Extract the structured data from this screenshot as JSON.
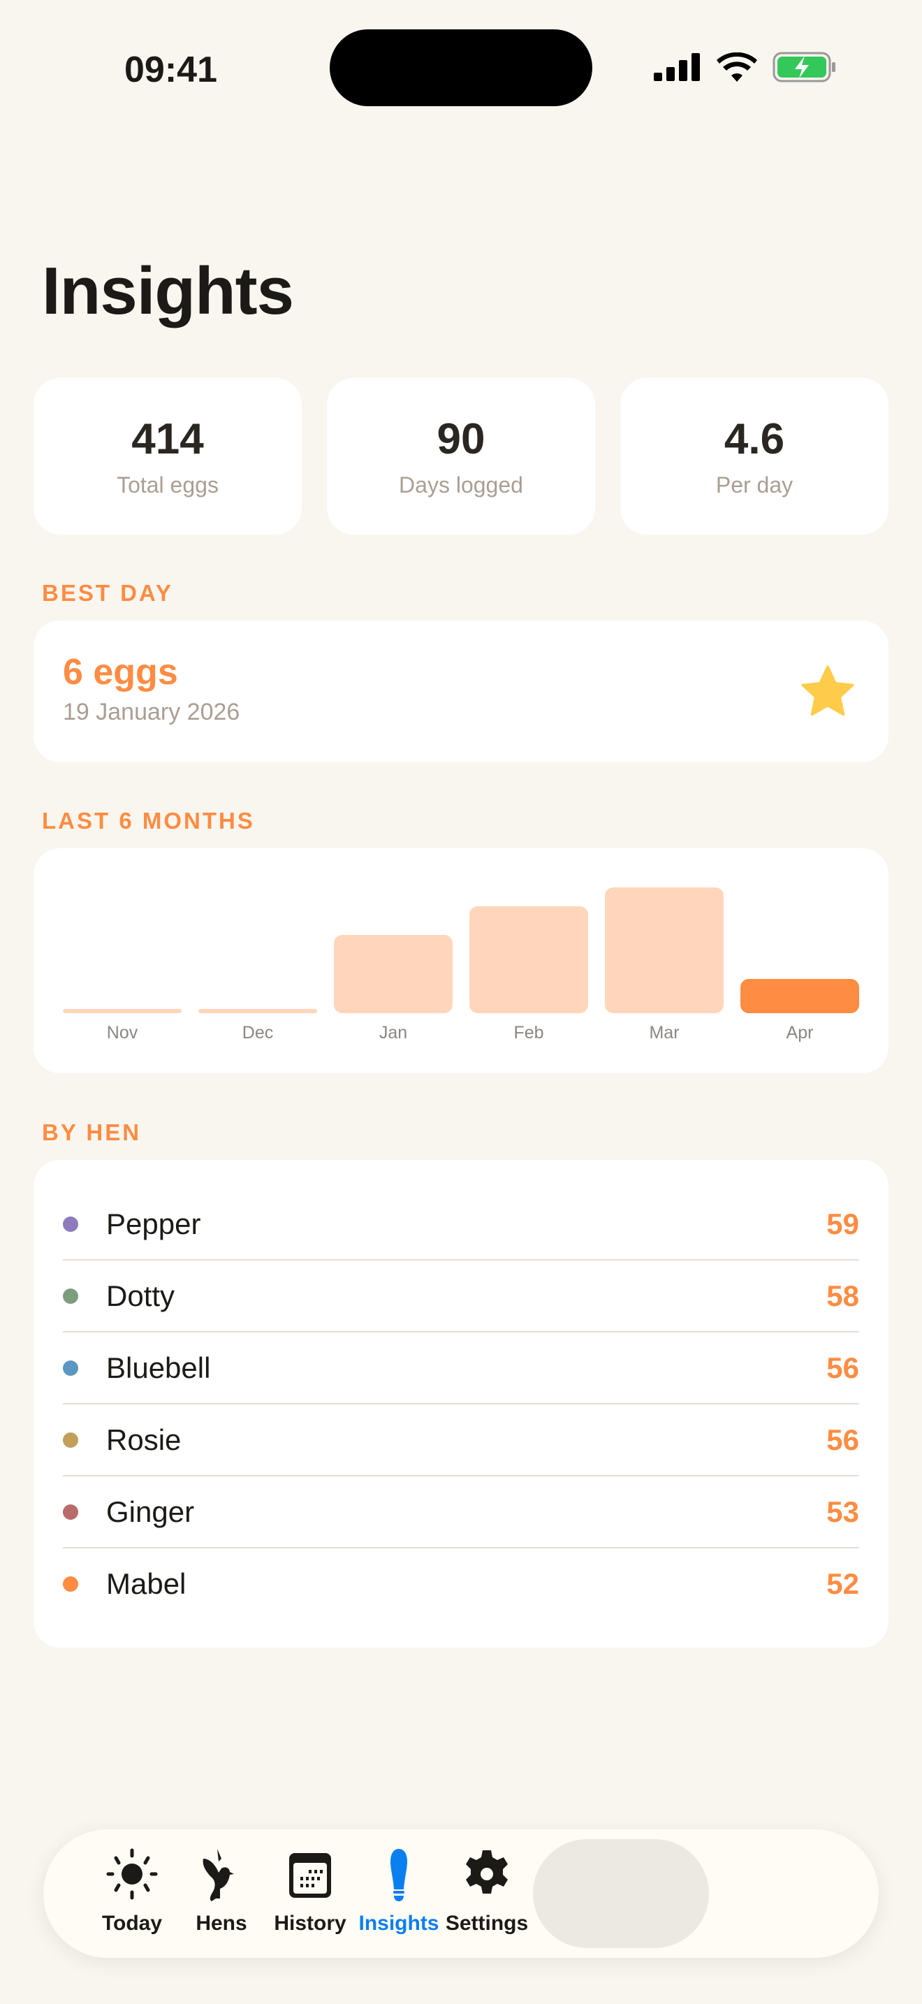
{
  "status": {
    "time": "09:41"
  },
  "title": "Insights",
  "stats": [
    {
      "value": "414",
      "label": "Total eggs"
    },
    {
      "value": "90",
      "label": "Days logged"
    },
    {
      "value": "4.6",
      "label": "Per day"
    }
  ],
  "best_day": {
    "section": "BEST DAY",
    "value": "6 eggs",
    "date": "19 January 2026",
    "icon": "star-icon"
  },
  "chart_section": "LAST 6 MONTHS",
  "chart_data": {
    "type": "bar",
    "categories": [
      "Nov",
      "Dec",
      "Jan",
      "Feb",
      "Mar",
      "Apr"
    ],
    "values": [
      0,
      0,
      94,
      128,
      151,
      41
    ],
    "highlight": "Apr",
    "colors": {
      "bar": "#ffd6bc",
      "highlight": "#ff8c42"
    }
  },
  "hens_section": "BY HEN",
  "hens": [
    {
      "name": "Pepper",
      "count": "59",
      "color": "#8e7bbd"
    },
    {
      "name": "Dotty",
      "count": "58",
      "color": "#7d9e7e"
    },
    {
      "name": "Bluebell",
      "count": "56",
      "color": "#5b97c0"
    },
    {
      "name": "Rosie",
      "count": "56",
      "color": "#c2a05a"
    },
    {
      "name": "Ginger",
      "count": "53",
      "color": "#b86b68"
    },
    {
      "name": "Mabel",
      "count": "52",
      "color": "#ff8c42"
    }
  ],
  "tabs": [
    {
      "label": "Today",
      "icon": "sun-icon"
    },
    {
      "label": "Hens",
      "icon": "bird-icon"
    },
    {
      "label": "History",
      "icon": "calendar-icon"
    },
    {
      "label": "Insights",
      "icon": "lightbulb-icon",
      "active": true
    },
    {
      "label": "Settings",
      "icon": "gear-icon"
    }
  ],
  "colors": {
    "accent": "#ff8c42",
    "active_tab": "#0a7ff0",
    "background": "#f9f6f0"
  }
}
